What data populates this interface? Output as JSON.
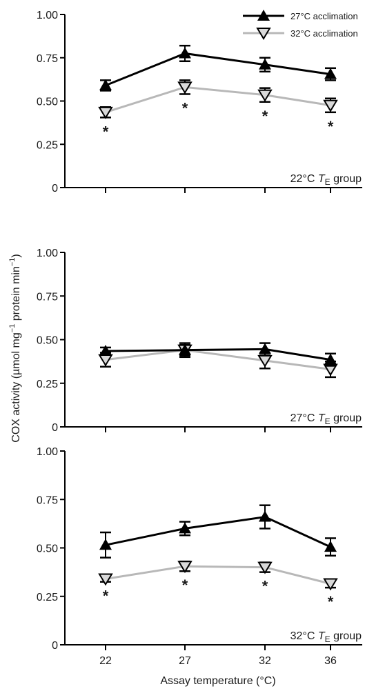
{
  "chart_data": [
    {
      "type": "line",
      "panel_label_prefix": "22°C ",
      "panel_label_T": "T",
      "panel_label_sub": "E",
      "panel_label_suffix": " group",
      "x": [
        22,
        27,
        32,
        36
      ],
      "ylim": [
        0,
        1.0
      ],
      "yticks": [
        "0",
        "0.25",
        "0.50",
        "0.75",
        "1.00"
      ],
      "series": [
        {
          "name": "27°C acclimation",
          "values": [
            0.59,
            0.775,
            0.71,
            0.655
          ],
          "errors": [
            0.03,
            0.045,
            0.04,
            0.035
          ],
          "color": "#000000",
          "marker": "triangle-up-filled"
        },
        {
          "name": "32°C acclimation",
          "values": [
            0.435,
            0.58,
            0.535,
            0.475
          ],
          "errors": [
            0.03,
            0.04,
            0.04,
            0.04
          ],
          "color": "#b8b8b8",
          "marker": "triangle-down-open"
        }
      ],
      "significance": [
        "*",
        "*",
        "*",
        "*"
      ]
    },
    {
      "type": "line",
      "panel_label_prefix": "27°C ",
      "panel_label_T": "T",
      "panel_label_sub": "E",
      "panel_label_suffix": " group",
      "x": [
        22,
        27,
        32,
        36
      ],
      "ylim": [
        0,
        1.0
      ],
      "yticks": [
        "0",
        "0.25",
        "0.50",
        "0.75",
        "1.00"
      ],
      "series": [
        {
          "name": "27°C acclimation",
          "values": [
            0.435,
            0.44,
            0.445,
            0.385
          ],
          "errors": [
            0.02,
            0.03,
            0.035,
            0.035
          ],
          "color": "#000000",
          "marker": "triangle-up-filled"
        },
        {
          "name": "32°C acclimation",
          "values": [
            0.385,
            0.44,
            0.38,
            0.33
          ],
          "errors": [
            0.04,
            0.04,
            0.045,
            0.045
          ],
          "color": "#b8b8b8",
          "marker": "triangle-down-open"
        }
      ],
      "significance": [
        "",
        "",
        "",
        ""
      ]
    },
    {
      "type": "line",
      "panel_label_prefix": "32°C ",
      "panel_label_T": "T",
      "panel_label_sub": "E",
      "panel_label_suffix": " group",
      "x": [
        22,
        27,
        32,
        36
      ],
      "ylim": [
        0,
        1.0
      ],
      "yticks": [
        "0",
        "0.25",
        "0.50",
        "0.75",
        "1.00"
      ],
      "series": [
        {
          "name": "27°C acclimation",
          "values": [
            0.515,
            0.6,
            0.66,
            0.505
          ],
          "errors": [
            0.065,
            0.035,
            0.06,
            0.045
          ],
          "color": "#000000",
          "marker": "triangle-up-filled"
        },
        {
          "name": "32°C acclimation",
          "values": [
            0.34,
            0.405,
            0.4,
            0.315
          ],
          "errors": [
            0.015,
            0.025,
            0.025,
            0.02
          ],
          "color": "#b8b8b8",
          "marker": "triangle-down-open"
        }
      ],
      "significance": [
        "*",
        "*",
        "*",
        "*"
      ]
    }
  ],
  "xticks": [
    "22",
    "27",
    "32",
    "36"
  ],
  "xlabel": "Assay temperature (°C)",
  "ylabel_prefix": "COX activity (µmol mg",
  "ylabel_sup1": "−1",
  "ylabel_mid": " protein min",
  "ylabel_sup2": "−1",
  "ylabel_suffix": ")",
  "legend": {
    "placement": "top-right",
    "items": [
      "27°C acclimation",
      "32°C acclimation"
    ]
  }
}
